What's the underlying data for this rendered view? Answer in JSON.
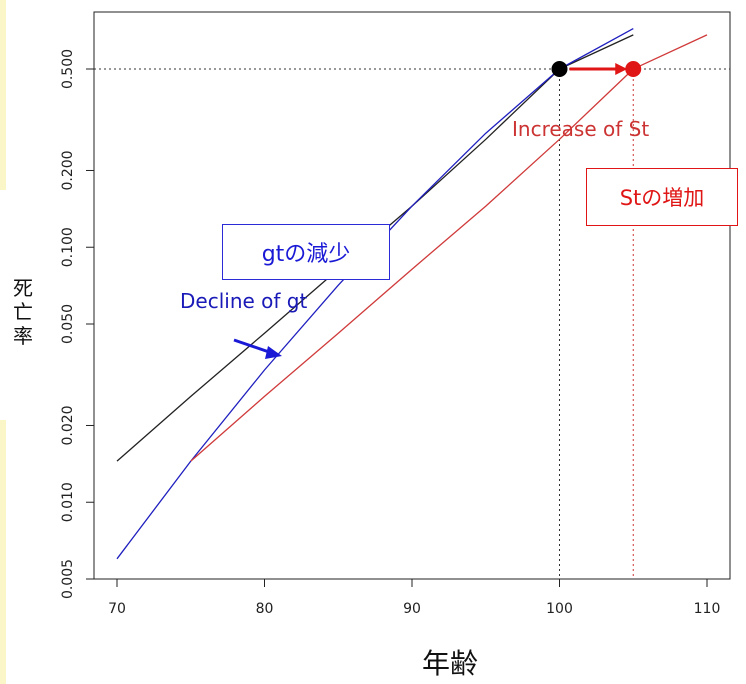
{
  "chart_data": {
    "type": "line",
    "xlabel": "年齢",
    "ylabel": "死亡率",
    "xlim": [
      69,
      112
    ],
    "ylim": [
      0.005,
      0.75
    ],
    "yscale": "log",
    "xticks": [
      "70",
      "80",
      "90",
      "100",
      "110"
    ],
    "yticks": [
      "0.005",
      "0.010",
      "0.020",
      "0.050",
      "0.100",
      "0.200",
      "0.500"
    ],
    "series": [
      {
        "color": "#222222",
        "x": [
          70,
          75,
          80,
          85,
          90,
          95,
          100,
          105
        ],
        "y": [
          0.0145,
          0.026,
          0.046,
          0.082,
          0.145,
          0.265,
          0.5,
          0.68
        ]
      },
      {
        "color": "#1f1fbf",
        "x": [
          70,
          75,
          80,
          85,
          90,
          95,
          100,
          105
        ],
        "y": [
          0.006,
          0.0145,
          0.033,
          0.071,
          0.145,
          0.28,
          0.5,
          0.72
        ]
      },
      {
        "color": "#d03a3a",
        "x": [
          75,
          80,
          85,
          90,
          95,
          100,
          105,
          110
        ],
        "y": [
          0.0145,
          0.026,
          0.046,
          0.082,
          0.145,
          0.265,
          0.5,
          0.68
        ]
      }
    ],
    "reference_lines": {
      "h": 0.5,
      "v": [
        100,
        105
      ]
    },
    "points": [
      {
        "x": 100,
        "y": 0.5,
        "color": "#000000"
      },
      {
        "x": 105,
        "y": 0.5,
        "color": "#e01515"
      }
    ],
    "annotations": {
      "increase_en": "Increase of St",
      "increase_ja": "Stの増加",
      "decline_en": "Decline of gt",
      "decline_ja": "gtの減少"
    },
    "colors": {
      "red": "#e01515",
      "blue": "#1a1ad6",
      "box_red": "#e01515",
      "box_blue": "#2b2bd8"
    }
  }
}
